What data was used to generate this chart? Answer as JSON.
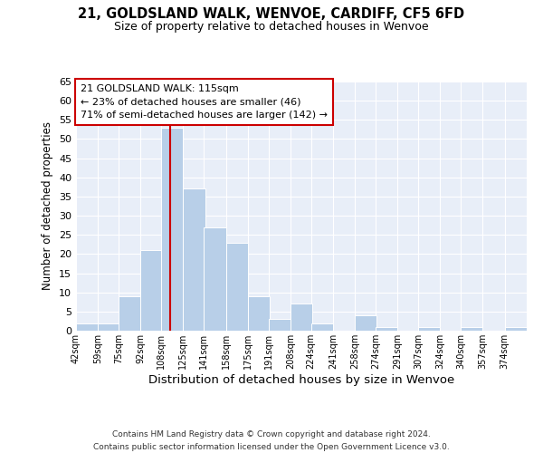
{
  "title": "21, GOLDSLAND WALK, WENVOE, CARDIFF, CF5 6FD",
  "subtitle": "Size of property relative to detached houses in Wenvoe",
  "xlabel": "Distribution of detached houses by size in Wenvoe",
  "ylabel": "Number of detached properties",
  "bin_labels": [
    "42sqm",
    "59sqm",
    "75sqm",
    "92sqm",
    "108sqm",
    "125sqm",
    "141sqm",
    "158sqm",
    "175sqm",
    "191sqm",
    "208sqm",
    "224sqm",
    "241sqm",
    "258sqm",
    "274sqm",
    "291sqm",
    "307sqm",
    "324sqm",
    "340sqm",
    "357sqm",
    "374sqm"
  ],
  "bin_edges": [
    42,
    59,
    75,
    92,
    108,
    125,
    141,
    158,
    175,
    191,
    208,
    224,
    241,
    258,
    274,
    291,
    307,
    324,
    340,
    357,
    374
  ],
  "bin_width": 17,
  "counts": [
    2,
    2,
    9,
    21,
    53,
    37,
    27,
    23,
    9,
    3,
    7,
    2,
    0,
    4,
    1,
    0,
    1,
    0,
    1,
    0,
    1
  ],
  "bar_color": "#b8cfe8",
  "red_line_x": 115,
  "annotation_title": "21 GOLDSLAND WALK: 115sqm",
  "annotation_line1": "← 23% of detached houses are smaller (46)",
  "annotation_line2": "71% of semi-detached houses are larger (142) →",
  "annotation_box_edgecolor": "#cc0000",
  "ylim": [
    0,
    65
  ],
  "yticks": [
    0,
    5,
    10,
    15,
    20,
    25,
    30,
    35,
    40,
    45,
    50,
    55,
    60,
    65
  ],
  "background_color": "#e8eef8",
  "footer_line1": "Contains HM Land Registry data © Crown copyright and database right 2024.",
  "footer_line2": "Contains public sector information licensed under the Open Government Licence v3.0."
}
